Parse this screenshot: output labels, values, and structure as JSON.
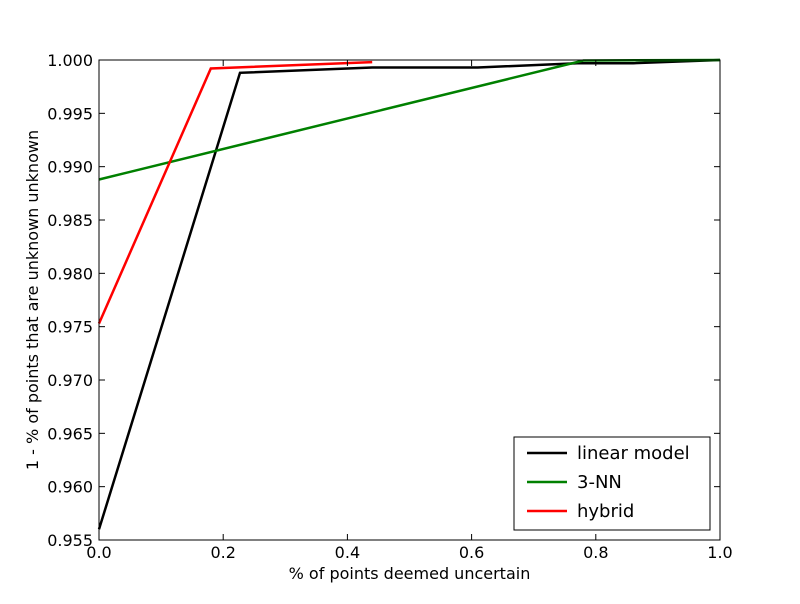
{
  "chart_data": {
    "type": "line",
    "title": "",
    "xlabel": "% of points deemed uncertain",
    "ylabel": "1 - % of points that are unknown unknown",
    "xlim": [
      0.0,
      1.0
    ],
    "ylim": [
      0.955,
      1.0
    ],
    "grid": false,
    "legend_position": "bottom-right",
    "x_ticks": [
      {
        "value": 0.0,
        "label": "0.0"
      },
      {
        "value": 0.2,
        "label": "0.2"
      },
      {
        "value": 0.4,
        "label": "0.4"
      },
      {
        "value": 0.6,
        "label": "0.6"
      },
      {
        "value": 0.8,
        "label": "0.8"
      },
      {
        "value": 1.0,
        "label": "1.0"
      }
    ],
    "y_ticks": [
      {
        "value": 0.955,
        "label": "0.955"
      },
      {
        "value": 0.96,
        "label": "0.960"
      },
      {
        "value": 0.965,
        "label": "0.965"
      },
      {
        "value": 0.97,
        "label": "0.970"
      },
      {
        "value": 0.975,
        "label": "0.975"
      },
      {
        "value": 0.98,
        "label": "0.980"
      },
      {
        "value": 0.985,
        "label": "0.985"
      },
      {
        "value": 0.99,
        "label": "0.990"
      },
      {
        "value": 0.995,
        "label": "0.995"
      },
      {
        "value": 1.0,
        "label": "1.000"
      }
    ],
    "series": [
      {
        "name": "linear model",
        "color": "#000000",
        "x": [
          0.0,
          0.227,
          0.44,
          0.61,
          0.77,
          0.86,
          1.0
        ],
        "y": [
          0.956,
          0.9988,
          0.9993,
          0.9993,
          0.9997,
          0.9997,
          1.0
        ]
      },
      {
        "name": "3-NN",
        "color": "#008000",
        "x": [
          0.0,
          0.78,
          1.0
        ],
        "y": [
          0.9888,
          0.99995,
          1.0
        ]
      },
      {
        "name": "hybrid",
        "color": "#ff0000",
        "x": [
          0.0,
          0.18,
          0.44
        ],
        "y": [
          0.9753,
          0.9992,
          0.9998
        ]
      }
    ]
  }
}
